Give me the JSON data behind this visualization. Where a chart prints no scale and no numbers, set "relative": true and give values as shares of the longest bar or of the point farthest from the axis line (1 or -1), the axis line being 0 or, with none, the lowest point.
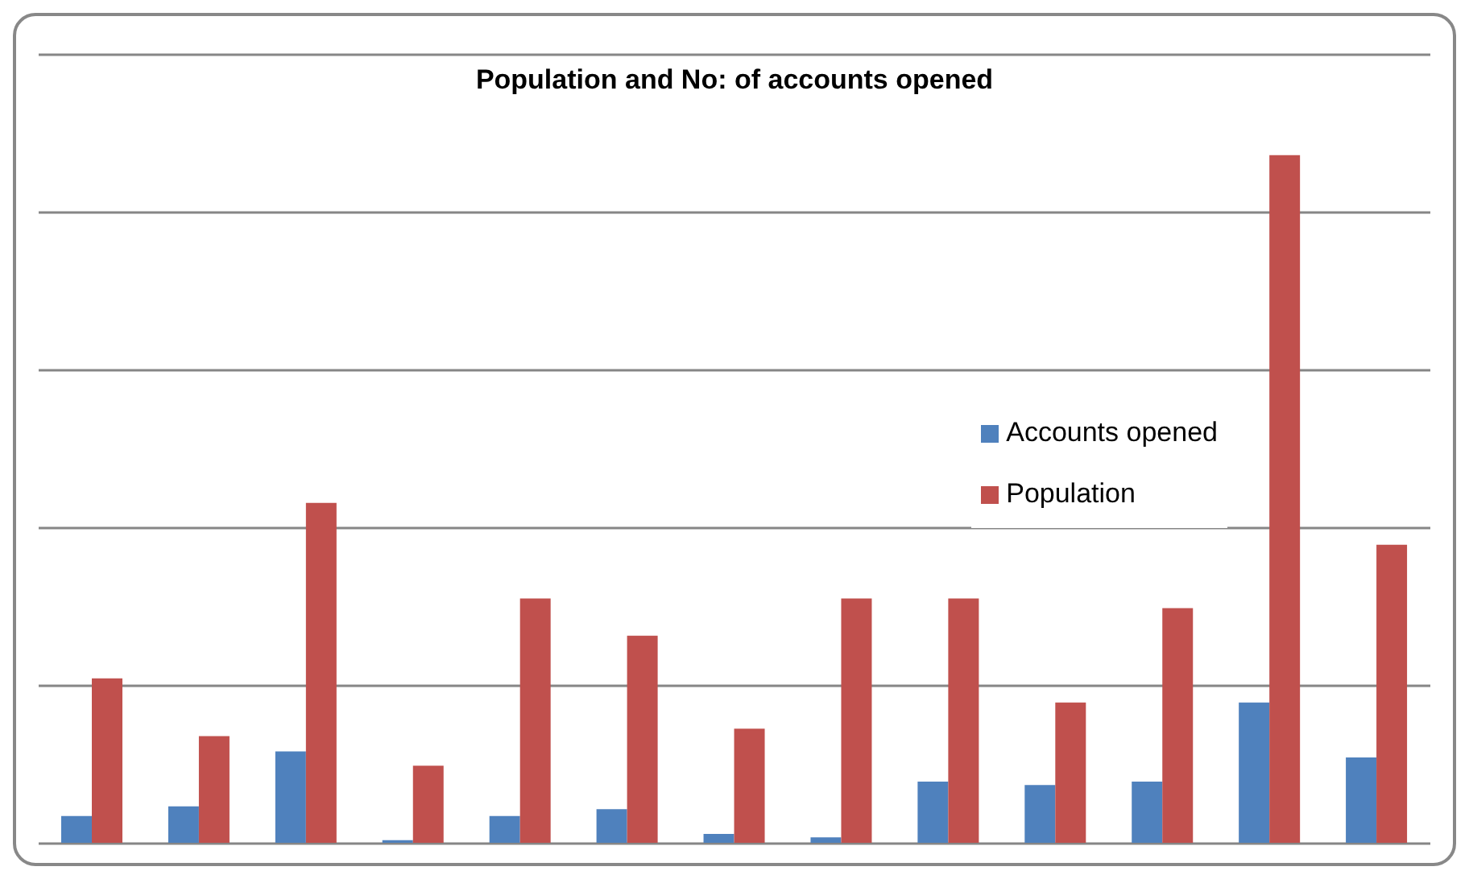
{
  "chart_data": {
    "type": "bar",
    "title": "Population and No: of accounts opened",
    "relative": true,
    "categories": [
      null,
      null,
      null,
      null,
      null,
      null,
      null,
      null,
      null,
      null,
      null,
      null,
      null
    ],
    "series": [
      {
        "name": "Accounts opened",
        "color": "#4f81bd",
        "values": [
          0.04,
          0.054,
          0.134,
          0.005,
          0.04,
          0.05,
          0.014,
          0.009,
          0.09,
          0.085,
          0.09,
          0.205,
          0.125
        ]
      },
      {
        "name": "Population",
        "color": "#c0504d",
        "values": [
          0.24,
          0.156,
          0.495,
          0.113,
          0.356,
          0.302,
          0.167,
          0.356,
          0.356,
          0.205,
          0.342,
          1,
          0.434
        ]
      }
    ],
    "grid": "y",
    "legend": "right"
  }
}
